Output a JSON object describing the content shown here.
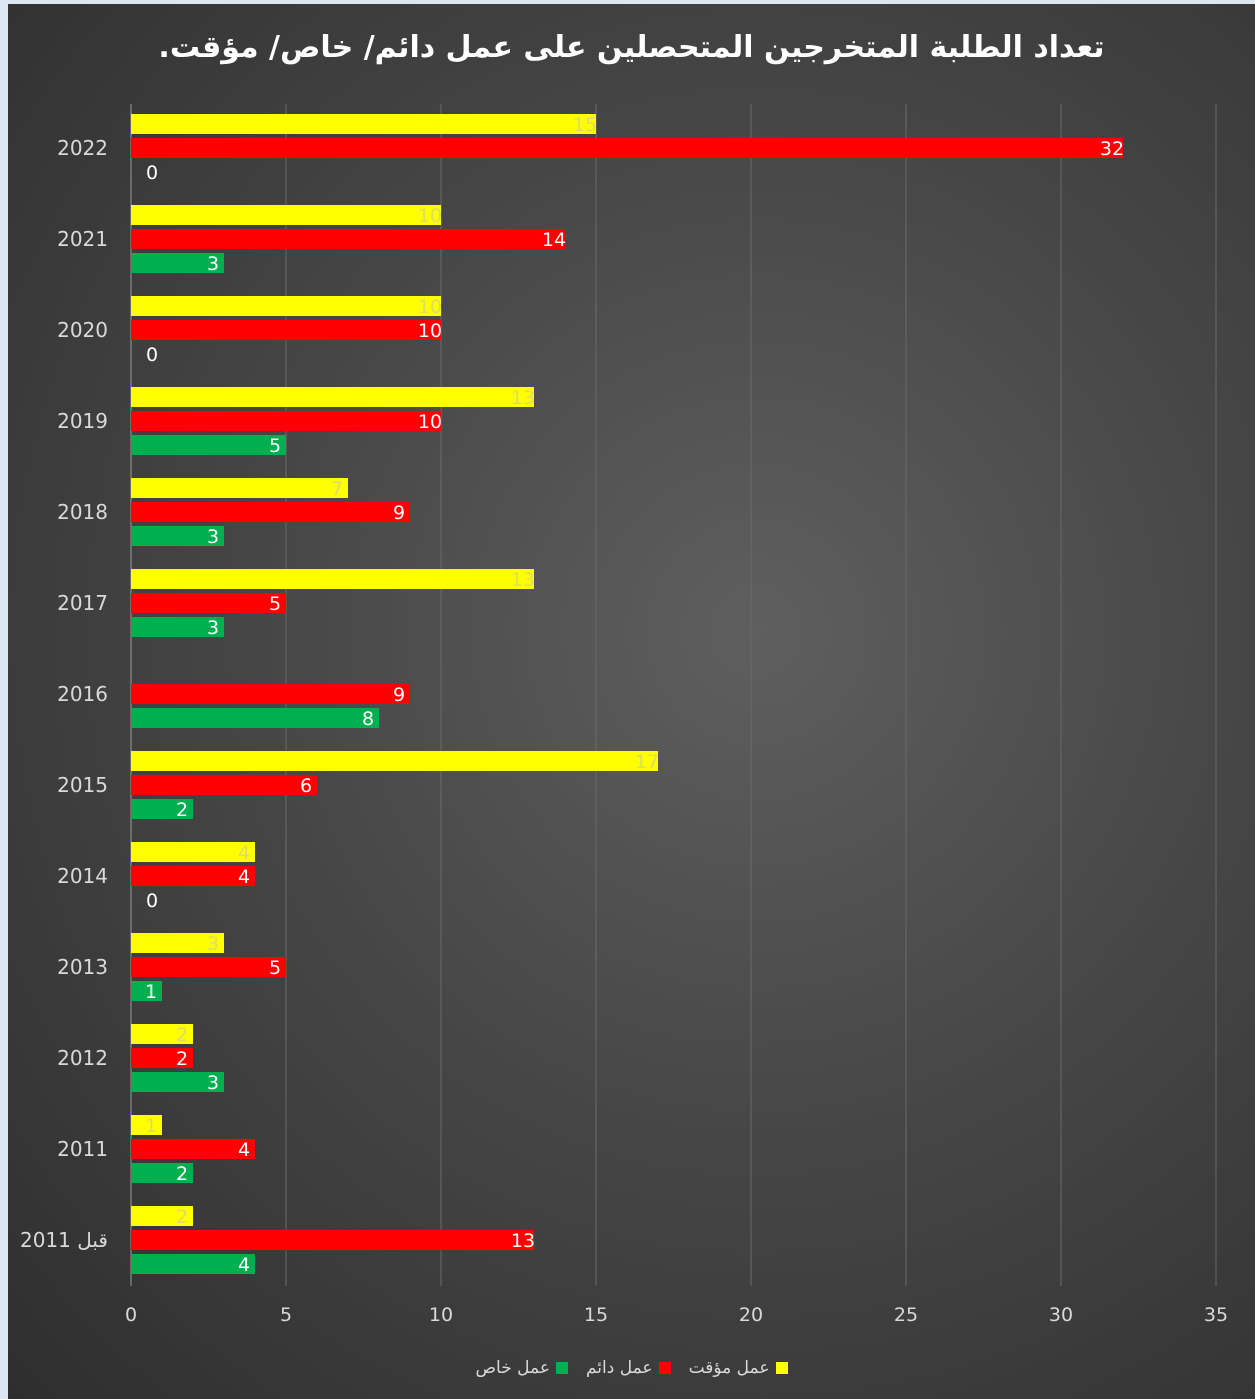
{
  "chart_data": {
    "type": "bar",
    "orientation": "horizontal",
    "title": "تعداد الطلبة المتخرجين المتحصلين على عمل دائم/ خاص/ مؤقت.",
    "categories": [
      "2022",
      "2021",
      "2020",
      "2019",
      "2018",
      "2017",
      "2016",
      "2015",
      "2014",
      "2013",
      "2012",
      "2011",
      "قبل 2011"
    ],
    "series": [
      {
        "name": "عمل مؤقت",
        "color": "#ffff00",
        "label_color": "#dddd66",
        "values": [
          15,
          10,
          10,
          13,
          7,
          13,
          null,
          17,
          4,
          3,
          2,
          1,
          2
        ]
      },
      {
        "name": "عمل دائم",
        "color": "#ff0000",
        "label_color": "#ffffff",
        "values": [
          32,
          14,
          10,
          10,
          9,
          5,
          9,
          6,
          4,
          5,
          2,
          4,
          13
        ]
      },
      {
        "name": "عمل خاص",
        "color": "#00b050",
        "label_color": "#ffffff",
        "values": [
          0,
          3,
          0,
          5,
          3,
          3,
          8,
          2,
          0,
          1,
          3,
          2,
          4
        ]
      }
    ],
    "xlim": [
      0,
      35
    ],
    "x_ticks": [
      0,
      5,
      10,
      15,
      20,
      25,
      30,
      35
    ],
    "grid": true,
    "legend_position": "bottom"
  }
}
